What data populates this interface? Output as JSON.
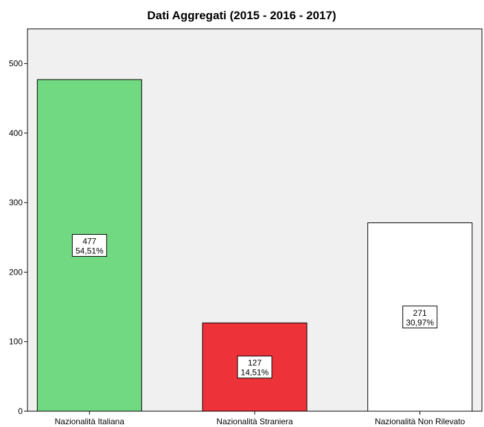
{
  "chart_data": {
    "type": "bar",
    "title": "Dati Aggregati (2015 - 2016 - 2017)",
    "xlabel": "",
    "ylabel": "",
    "categories": [
      "Nazionalità Italiana",
      "Nazionalità Straniera",
      "Nazionalità Non Rilevato"
    ],
    "values": [
      477,
      127,
      271
    ],
    "percent_labels": [
      "54,51%",
      "14,51%",
      "30,97%"
    ],
    "bar_colors": [
      "#72d983",
      "#ee3239",
      "#ffffff"
    ],
    "ylim": [
      0,
      550
    ],
    "yticks": [
      0,
      100,
      200,
      300,
      400,
      500
    ],
    "plot_background": "#f0f0f0",
    "grid": false,
    "legend": "none"
  }
}
